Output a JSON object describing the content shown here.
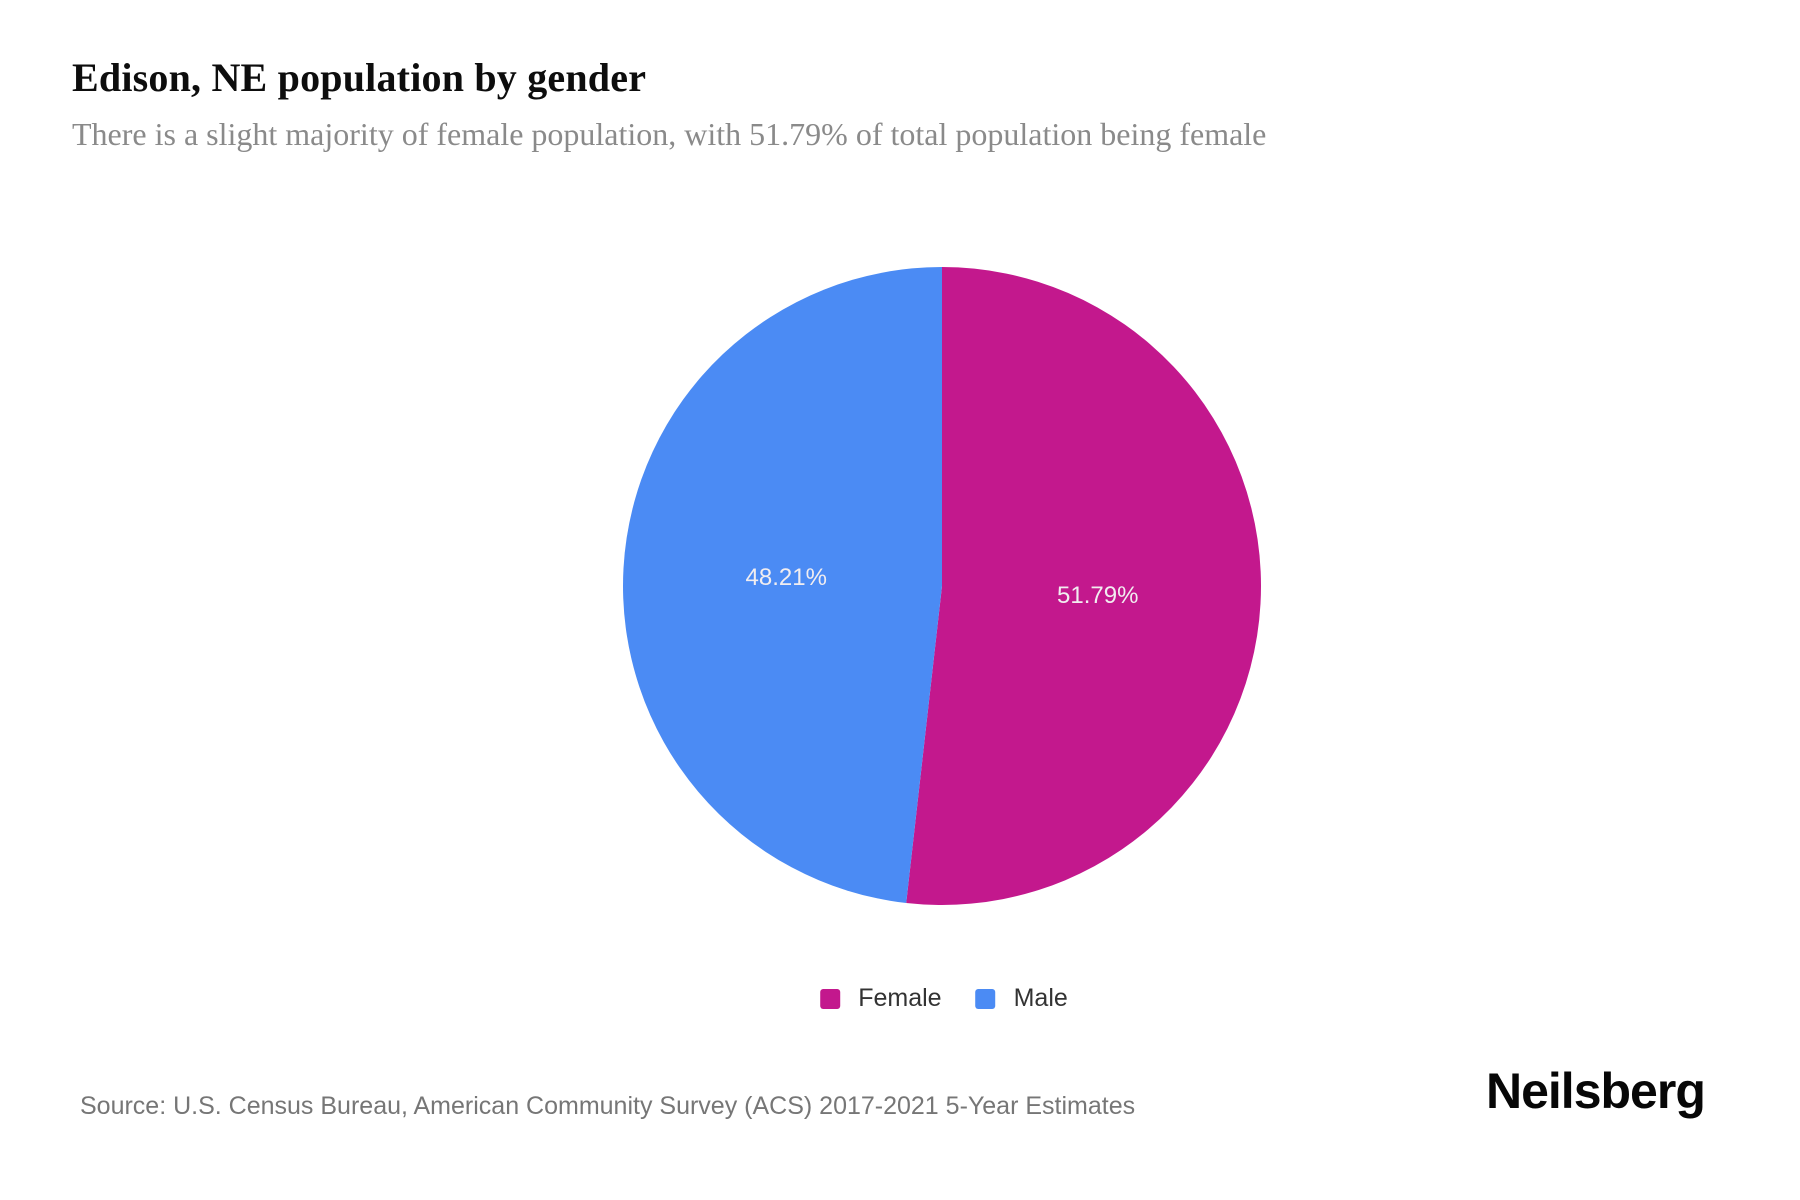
{
  "header": {
    "title": "Edison, NE population by gender",
    "subtitle": "There is a slight majority of female population, with 51.79% of total population being female"
  },
  "chart_data": {
    "type": "pie",
    "title": "Edison, NE population by gender",
    "subtitle": "There is a slight majority of female population, with 51.79% of total population being female",
    "series": [
      {
        "name": "Female",
        "value": 51.79,
        "label": "51.79%",
        "color": "#C3188D"
      },
      {
        "name": "Male",
        "value": 48.21,
        "label": "48.21%",
        "color": "#4B8BF4"
      }
    ],
    "start_angle_deg": 0,
    "direction": "clockwise",
    "legend_position": "bottom",
    "data_label_color": "#F1EDF0",
    "source": "Source: U.S. Census Bureau, American Community Survey (ACS) 2017-2021 5-Year Estimates"
  },
  "footer": {
    "source": "Source: U.S. Census Bureau, American Community Survey (ACS) 2017-2021 5-Year Estimates",
    "brand": "Neilsberg"
  }
}
